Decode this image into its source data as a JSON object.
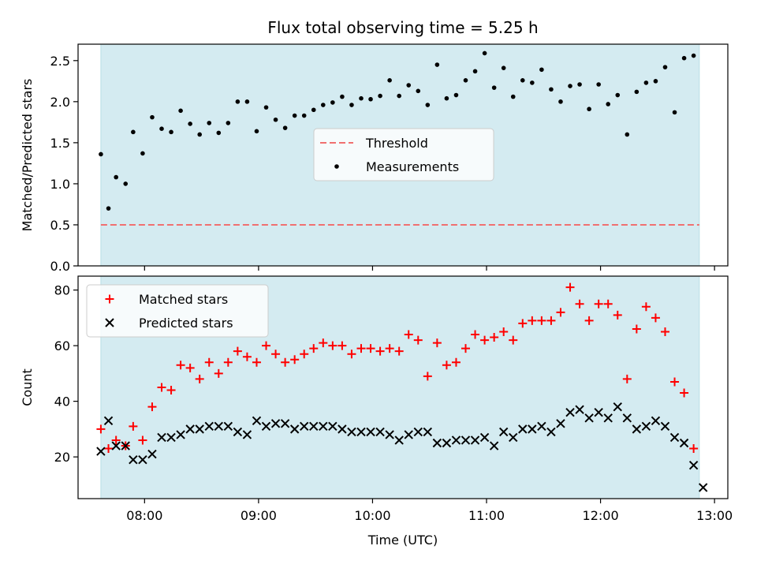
{
  "title": "Flux total observing time = 5.25 h",
  "chart_data": [
    {
      "type": "scatter",
      "panel": "top",
      "ylabel": "Matched/Predicted stars",
      "xlabel": "",
      "xlim": [
        "07:25",
        "13:07"
      ],
      "ylim": [
        0,
        2.7
      ],
      "yticks": [
        0.0,
        0.5,
        1.0,
        1.5,
        2.0,
        2.5
      ],
      "ytick_labels": [
        "0.0",
        "0.5",
        "1.0",
        "1.5",
        "2.0",
        "2.5"
      ],
      "observing_window": [
        "07:37",
        "12:52"
      ],
      "observing_window_color": "#d4ebf1",
      "legend_position": "center",
      "threshold": {
        "name": "Threshold",
        "value": 0.5,
        "color": "#f07070",
        "style": "dashed"
      },
      "series": [
        {
          "name": "Measurements",
          "color": "#000000",
          "marker": "dot",
          "points": [
            [
              "07:37",
              1.36
            ],
            [
              "07:41",
              0.7
            ],
            [
              "07:45",
              1.08
            ],
            [
              "07:50",
              1.0
            ],
            [
              "07:54",
              1.63
            ],
            [
              "07:59",
              1.37
            ],
            [
              "08:04",
              1.81
            ],
            [
              "08:09",
              1.67
            ],
            [
              "08:14",
              1.63
            ],
            [
              "08:19",
              1.89
            ],
            [
              "08:24",
              1.73
            ],
            [
              "08:29",
              1.6
            ],
            [
              "08:34",
              1.74
            ],
            [
              "08:39",
              1.62
            ],
            [
              "08:44",
              1.74
            ],
            [
              "08:49",
              2.0
            ],
            [
              "08:54",
              2.0
            ],
            [
              "08:59",
              1.64
            ],
            [
              "09:04",
              1.93
            ],
            [
              "09:09",
              1.78
            ],
            [
              "09:14",
              1.68
            ],
            [
              "09:19",
              1.83
            ],
            [
              "09:24",
              1.83
            ],
            [
              "09:29",
              1.9
            ],
            [
              "09:34",
              1.96
            ],
            [
              "09:39",
              1.99
            ],
            [
              "09:44",
              2.06
            ],
            [
              "09:49",
              1.96
            ],
            [
              "09:54",
              2.04
            ],
            [
              "09:59",
              2.03
            ],
            [
              "10:04",
              2.07
            ],
            [
              "10:09",
              2.26
            ],
            [
              "10:14",
              2.07
            ],
            [
              "10:19",
              2.2
            ],
            [
              "10:24",
              2.13
            ],
            [
              "10:29",
              1.96
            ],
            [
              "10:34",
              2.45
            ],
            [
              "10:39",
              2.04
            ],
            [
              "10:44",
              2.08
            ],
            [
              "10:49",
              2.26
            ],
            [
              "10:54",
              2.37
            ],
            [
              "10:59",
              2.59
            ],
            [
              "11:04",
              2.17
            ],
            [
              "11:09",
              2.41
            ],
            [
              "11:14",
              2.06
            ],
            [
              "11:19",
              2.26
            ],
            [
              "11:24",
              2.23
            ],
            [
              "11:29",
              2.39
            ],
            [
              "11:34",
              2.15
            ],
            [
              "11:39",
              2.0
            ],
            [
              "11:44",
              2.19
            ],
            [
              "11:49",
              2.21
            ],
            [
              "11:54",
              1.91
            ],
            [
              "11:59",
              2.21
            ],
            [
              "12:04",
              1.97
            ],
            [
              "12:09",
              2.08
            ],
            [
              "12:14",
              1.6
            ],
            [
              "12:19",
              2.12
            ],
            [
              "12:24",
              2.23
            ],
            [
              "12:29",
              2.25
            ],
            [
              "12:34",
              2.42
            ],
            [
              "12:39",
              1.87
            ],
            [
              "12:44",
              2.53
            ],
            [
              "12:49",
              2.56
            ]
          ]
        }
      ]
    },
    {
      "type": "scatter",
      "panel": "bottom",
      "ylabel": "Count",
      "xlabel": "Time (UTC)",
      "xlim": [
        "07:25",
        "13:07"
      ],
      "ylim": [
        5,
        85
      ],
      "yticks": [
        20,
        40,
        60,
        80
      ],
      "ytick_labels": [
        "20",
        "40",
        "60",
        "80"
      ],
      "xticks": [
        "08:00",
        "09:00",
        "10:00",
        "11:00",
        "12:00",
        "13:00"
      ],
      "xtick_labels": [
        "08:00",
        "09:00",
        "10:00",
        "11:00",
        "12:00",
        "13:00"
      ],
      "observing_window": [
        "07:37",
        "12:52"
      ],
      "observing_window_color": "#d4ebf1",
      "legend_position": "top-left",
      "series": [
        {
          "name": "Matched stars",
          "color": "#ff0000",
          "marker": "plus",
          "points": [
            [
              "07:37",
              30
            ],
            [
              "07:41",
              23
            ],
            [
              "07:45",
              26
            ],
            [
              "07:50",
              24
            ],
            [
              "07:54",
              31
            ],
            [
              "07:59",
              26
            ],
            [
              "08:04",
              38
            ],
            [
              "08:09",
              45
            ],
            [
              "08:14",
              44
            ],
            [
              "08:19",
              53
            ],
            [
              "08:24",
              52
            ],
            [
              "08:29",
              48
            ],
            [
              "08:34",
              54
            ],
            [
              "08:39",
              50
            ],
            [
              "08:44",
              54
            ],
            [
              "08:49",
              58
            ],
            [
              "08:54",
              56
            ],
            [
              "08:59",
              54
            ],
            [
              "09:04",
              60
            ],
            [
              "09:09",
              57
            ],
            [
              "09:14",
              54
            ],
            [
              "09:19",
              55
            ],
            [
              "09:24",
              57
            ],
            [
              "09:29",
              59
            ],
            [
              "09:34",
              61
            ],
            [
              "09:39",
              60
            ],
            [
              "09:44",
              60
            ],
            [
              "09:49",
              57
            ],
            [
              "09:54",
              59
            ],
            [
              "09:59",
              59
            ],
            [
              "10:04",
              58
            ],
            [
              "10:09",
              59
            ],
            [
              "10:14",
              58
            ],
            [
              "10:19",
              64
            ],
            [
              "10:24",
              62
            ],
            [
              "10:29",
              49
            ],
            [
              "10:34",
              61
            ],
            [
              "10:39",
              53
            ],
            [
              "10:44",
              54
            ],
            [
              "10:49",
              59
            ],
            [
              "10:54",
              64
            ],
            [
              "10:59",
              62
            ],
            [
              "11:04",
              63
            ],
            [
              "11:09",
              65
            ],
            [
              "11:14",
              62
            ],
            [
              "11:19",
              68
            ],
            [
              "11:24",
              69
            ],
            [
              "11:29",
              69
            ],
            [
              "11:34",
              69
            ],
            [
              "11:39",
              72
            ],
            [
              "11:44",
              81
            ],
            [
              "11:49",
              75
            ],
            [
              "11:54",
              69
            ],
            [
              "11:59",
              75
            ],
            [
              "12:04",
              75
            ],
            [
              "12:09",
              71
            ],
            [
              "12:14",
              48
            ],
            [
              "12:19",
              66
            ],
            [
              "12:24",
              74
            ],
            [
              "12:29",
              70
            ],
            [
              "12:34",
              65
            ],
            [
              "12:39",
              47
            ],
            [
              "12:44",
              43
            ],
            [
              "12:49",
              23
            ]
          ]
        },
        {
          "name": "Predicted stars",
          "color": "#000000",
          "marker": "x",
          "points": [
            [
              "07:37",
              22
            ],
            [
              "07:41",
              33
            ],
            [
              "07:45",
              24
            ],
            [
              "07:50",
              24
            ],
            [
              "07:54",
              19
            ],
            [
              "07:59",
              19
            ],
            [
              "08:04",
              21
            ],
            [
              "08:09",
              27
            ],
            [
              "08:14",
              27
            ],
            [
              "08:19",
              28
            ],
            [
              "08:24",
              30
            ],
            [
              "08:29",
              30
            ],
            [
              "08:34",
              31
            ],
            [
              "08:39",
              31
            ],
            [
              "08:44",
              31
            ],
            [
              "08:49",
              29
            ],
            [
              "08:54",
              28
            ],
            [
              "08:59",
              33
            ],
            [
              "09:04",
              31
            ],
            [
              "09:09",
              32
            ],
            [
              "09:14",
              32
            ],
            [
              "09:19",
              30
            ],
            [
              "09:24",
              31
            ],
            [
              "09:29",
              31
            ],
            [
              "09:34",
              31
            ],
            [
              "09:39",
              31
            ],
            [
              "09:44",
              30
            ],
            [
              "09:49",
              29
            ],
            [
              "09:54",
              29
            ],
            [
              "09:59",
              29
            ],
            [
              "10:04",
              29
            ],
            [
              "10:09",
              28
            ],
            [
              "10:14",
              26
            ],
            [
              "10:19",
              28
            ],
            [
              "10:24",
              29
            ],
            [
              "10:29",
              29
            ],
            [
              "10:34",
              25
            ],
            [
              "10:39",
              25
            ],
            [
              "10:44",
              26
            ],
            [
              "10:49",
              26
            ],
            [
              "10:54",
              26
            ],
            [
              "10:59",
              27
            ],
            [
              "11:04",
              24
            ],
            [
              "11:09",
              29
            ],
            [
              "11:14",
              27
            ],
            [
              "11:19",
              30
            ],
            [
              "11:24",
              30
            ],
            [
              "11:29",
              31
            ],
            [
              "11:34",
              29
            ],
            [
              "11:39",
              32
            ],
            [
              "11:44",
              36
            ],
            [
              "11:49",
              37
            ],
            [
              "11:54",
              34
            ],
            [
              "11:59",
              36
            ],
            [
              "12:04",
              34
            ],
            [
              "12:09",
              38
            ],
            [
              "12:14",
              34
            ],
            [
              "12:19",
              30
            ],
            [
              "12:24",
              31
            ],
            [
              "12:29",
              33
            ],
            [
              "12:34",
              31
            ],
            [
              "12:39",
              27
            ],
            [
              "12:44",
              25
            ],
            [
              "12:49",
              17
            ],
            [
              "12:54",
              9
            ]
          ]
        }
      ]
    }
  ]
}
